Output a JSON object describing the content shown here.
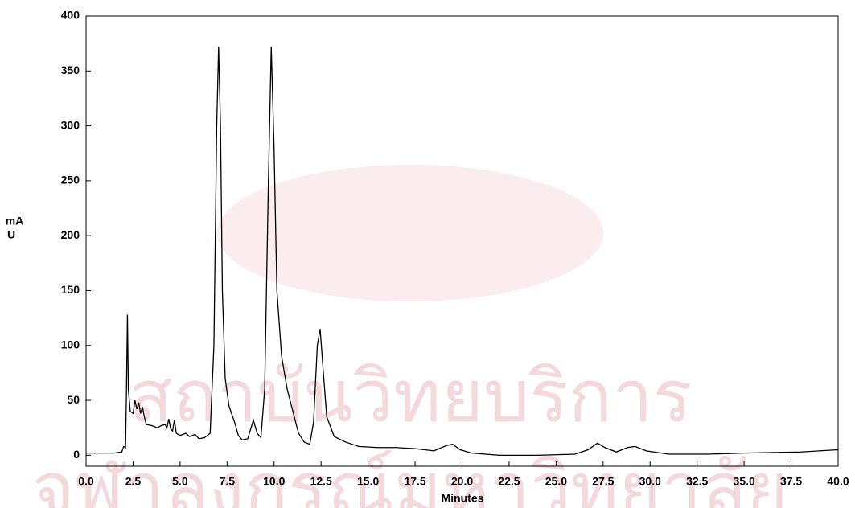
{
  "chart_data": {
    "type": "line",
    "xlabel": "Minutes",
    "ylabel": [
      "mA",
      "U"
    ],
    "watermark": [
      "สถาบันวิทยบริการ",
      "จุฬาลงกรณ์มหาวิทยาลัย"
    ],
    "xlim": [
      0,
      40
    ],
    "ylim": [
      -10,
      400
    ],
    "xticks": [
      {
        "value": 0,
        "label": "0.0"
      },
      {
        "value": 2.5,
        "label": "2.5"
      },
      {
        "value": 5,
        "label": "5.0"
      },
      {
        "value": 7.5,
        "label": "7.5"
      },
      {
        "value": 10,
        "label": "10.0"
      },
      {
        "value": 12.5,
        "label": "12.5"
      },
      {
        "value": 15,
        "label": "15.0"
      },
      {
        "value": 17.5,
        "label": "17.5"
      },
      {
        "value": 20,
        "label": "20.0"
      },
      {
        "value": 22.5,
        "label": "22.5"
      },
      {
        "value": 25,
        "label": "25.0"
      },
      {
        "value": 27.5,
        "label": "27.5"
      },
      {
        "value": 30,
        "label": "30.0"
      },
      {
        "value": 32.5,
        "label": "32.5"
      },
      {
        "value": 35,
        "label": "35.0"
      },
      {
        "value": 37.5,
        "label": "37.5"
      },
      {
        "value": 40,
        "label": "40.0"
      }
    ],
    "yticks": [
      0,
      50,
      100,
      150,
      200,
      250,
      300,
      350,
      400
    ],
    "grid": false,
    "series": [
      {
        "color": "#000000",
        "x": [
          0,
          1.5,
          1.9,
          2.0,
          2.1,
          2.15,
          2.2,
          2.25,
          2.35,
          2.5,
          2.6,
          2.7,
          2.8,
          2.9,
          3.0,
          3.1,
          3.2,
          3.5,
          3.8,
          4.0,
          4.2,
          4.3,
          4.4,
          4.5,
          4.6,
          4.7,
          4.8,
          5.0,
          5.3,
          5.5,
          5.8,
          6.0,
          6.3,
          6.6,
          6.8,
          6.95,
          7.05,
          7.15,
          7.25,
          7.4,
          7.6,
          7.9,
          8.1,
          8.3,
          8.6,
          8.9,
          9.1,
          9.3,
          9.5,
          9.7,
          9.85,
          10.0,
          10.15,
          10.4,
          10.7,
          11.0,
          11.3,
          11.6,
          11.9,
          12.1,
          12.3,
          12.45,
          12.6,
          12.8,
          13.2,
          13.8,
          14.5,
          15.5,
          16.5,
          17.5,
          18.5,
          19.2,
          19.5,
          19.9,
          20.5,
          22,
          24,
          26,
          26.7,
          27.2,
          27.6,
          28.2,
          28.8,
          29.2,
          29.8,
          31,
          33,
          35,
          38,
          40
        ],
        "values": [
          2,
          2,
          3,
          8,
          7,
          60,
          128,
          60,
          40,
          38,
          50,
          42,
          48,
          38,
          44,
          35,
          28,
          27,
          25,
          27,
          28,
          25,
          33,
          24,
          22,
          32,
          20,
          18,
          20,
          17,
          19,
          15,
          16,
          20,
          100,
          300,
          372,
          300,
          150,
          70,
          45,
          30,
          18,
          14,
          15,
          32,
          20,
          16,
          60,
          250,
          372,
          280,
          150,
          90,
          60,
          40,
          20,
          12,
          10,
          30,
          100,
          115,
          80,
          35,
          17,
          12,
          8,
          7,
          7,
          6,
          4,
          9,
          10,
          5,
          2,
          0,
          0,
          1,
          5,
          11,
          7,
          3,
          7,
          8,
          4,
          1,
          1,
          2,
          3,
          5
        ]
      }
    ]
  }
}
